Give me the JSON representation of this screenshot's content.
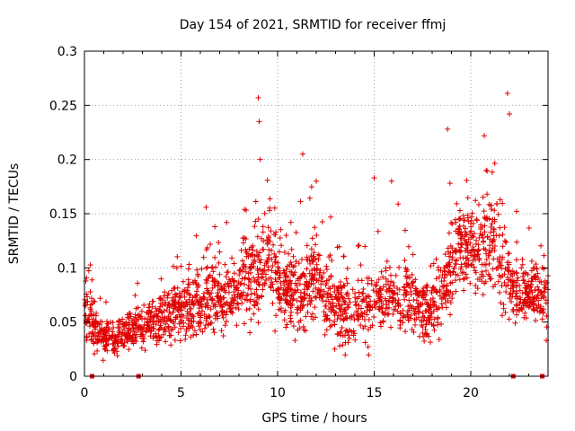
{
  "chart_data": {
    "type": "scatter",
    "title": "Day 154 of 2021, SRMTID for receiver ffmj",
    "xlabel": "GPS time / hours",
    "ylabel": "SRMTID / TECUs",
    "xlim": [
      0,
      24
    ],
    "ylim": [
      0,
      0.3
    ],
    "xticks": [
      0,
      5,
      10,
      15,
      20
    ],
    "xtick_labels": [
      "0",
      "5",
      "10",
      "15",
      "20"
    ],
    "yticks": [
      0,
      0.05,
      0.1,
      0.15,
      0.2,
      0.25,
      0.3
    ],
    "ytick_labels": [
      "0",
      "0.05",
      "0.1",
      "0.15",
      "0.2",
      "0.25",
      "0.3"
    ],
    "grid": true,
    "marker": "+",
    "color": "#e00000",
    "gap_markers_x": [
      0.4,
      2.8,
      22.2,
      23.7
    ],
    "series": [
      {
        "name": "SRMTID",
        "trend": {
          "x": [
            0,
            0.3,
            0.6,
            1.0,
            1.5,
            2.0,
            2.5,
            3.0,
            3.5,
            4.0,
            4.5,
            5.0,
            5.5,
            6.0,
            6.5,
            7.0,
            7.5,
            8.0,
            8.5,
            9.0,
            9.5,
            10.0,
            10.5,
            11.0,
            11.5,
            12.0,
            12.5,
            13.0,
            13.5,
            14.0,
            14.5,
            15.0,
            15.5,
            16.0,
            16.5,
            17.0,
            17.5,
            18.0,
            18.5,
            19.0,
            19.5,
            20.0,
            20.5,
            21.0,
            21.5,
            22.0,
            22.5,
            23.0,
            23.5,
            24.0
          ],
          "median": [
            0.06,
            0.055,
            0.04,
            0.035,
            0.037,
            0.04,
            0.042,
            0.045,
            0.05,
            0.055,
            0.058,
            0.062,
            0.062,
            0.068,
            0.075,
            0.072,
            0.07,
            0.078,
            0.095,
            0.1,
            0.11,
            0.09,
            0.075,
            0.08,
            0.075,
            0.1,
            0.07,
            0.065,
            0.058,
            0.06,
            0.065,
            0.07,
            0.075,
            0.075,
            0.07,
            0.068,
            0.065,
            0.06,
            0.07,
            0.11,
            0.115,
            0.12,
            0.11,
            0.13,
            0.1,
            0.085,
            0.07,
            0.075,
            0.08,
            0.07
          ],
          "spread": [
            0.02,
            0.025,
            0.015,
            0.015,
            0.015,
            0.015,
            0.015,
            0.017,
            0.018,
            0.02,
            0.02,
            0.022,
            0.025,
            0.028,
            0.03,
            0.028,
            0.028,
            0.03,
            0.035,
            0.04,
            0.035,
            0.03,
            0.028,
            0.035,
            0.03,
            0.035,
            0.028,
            0.025,
            0.025,
            0.025,
            0.028,
            0.03,
            0.03,
            0.03,
            0.028,
            0.028,
            0.025,
            0.025,
            0.03,
            0.035,
            0.035,
            0.035,
            0.035,
            0.04,
            0.035,
            0.03,
            0.025,
            0.025,
            0.03,
            0.03
          ]
        },
        "outliers_x": [
          9.0,
          9.05,
          9.1,
          11.3,
          18.8,
          20.7,
          20.8,
          21.9,
          22.0,
          15.0,
          15.9,
          6.3,
          12.0
        ],
        "outliers_y": [
          0.257,
          0.235,
          0.2,
          0.205,
          0.228,
          0.222,
          0.19,
          0.261,
          0.242,
          0.183,
          0.18,
          0.156,
          0.18
        ]
      }
    ]
  }
}
